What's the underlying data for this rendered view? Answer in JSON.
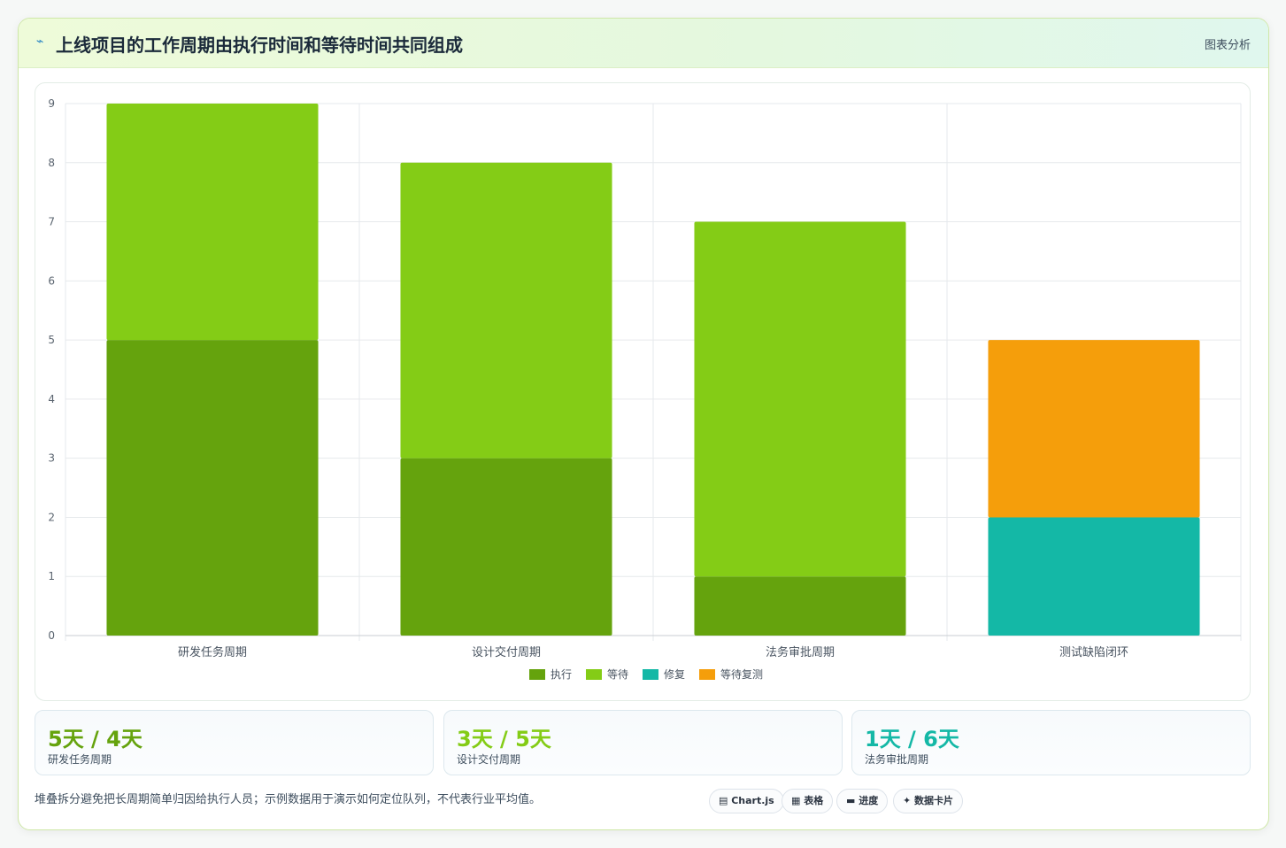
{
  "header": {
    "icon": "chart-spark-icon",
    "title": "上线项目的工作周期由执行时间和等待时间共同组成",
    "action_label": "图表分析"
  },
  "chart_data": {
    "type": "bar",
    "stacked": true,
    "categories": [
      "研发任务周期",
      "设计交付周期",
      "法务审批周期",
      "测试缺陷闭环"
    ],
    "series": [
      {
        "name": "执行",
        "color": "#65a30d",
        "values": [
          5,
          3,
          1,
          0
        ]
      },
      {
        "name": "等待",
        "color": "#84cc16",
        "values": [
          4,
          5,
          6,
          0
        ]
      },
      {
        "name": "修复",
        "color": "#14b8a6",
        "values": [
          0,
          0,
          0,
          2
        ]
      },
      {
        "name": "等待复测",
        "color": "#f59e0b",
        "values": [
          0,
          0,
          0,
          3
        ]
      }
    ],
    "ylim": [
      0,
      9
    ],
    "yticks": [
      0,
      1,
      2,
      3,
      4,
      5,
      6,
      7,
      8,
      9
    ],
    "grid": true,
    "legend_position": "bottom"
  },
  "stats": [
    {
      "value": "5天 / 4天",
      "label": "研发任务周期",
      "color": "#65a30d"
    },
    {
      "value": "3天 / 5天",
      "label": "设计交付周期",
      "color": "#84cc16"
    },
    {
      "value": "1天 / 6天",
      "label": "法务审批周期",
      "color": "#14b8a6"
    }
  ],
  "footer": {
    "note": "堆叠拆分避免把长周期简单归因给执行人员；示例数据用于演示如何定位队列，不代表行业平均值。",
    "pills": [
      {
        "label": "▤ Chart.js",
        "icon": "chart-icon"
      },
      {
        "label": "▦ 表格",
        "icon": "table-icon"
      },
      {
        "label": "▬ 进度",
        "icon": "progress-icon"
      },
      {
        "label": "✦ 数据卡片",
        "icon": "sparkle-icon"
      }
    ]
  }
}
